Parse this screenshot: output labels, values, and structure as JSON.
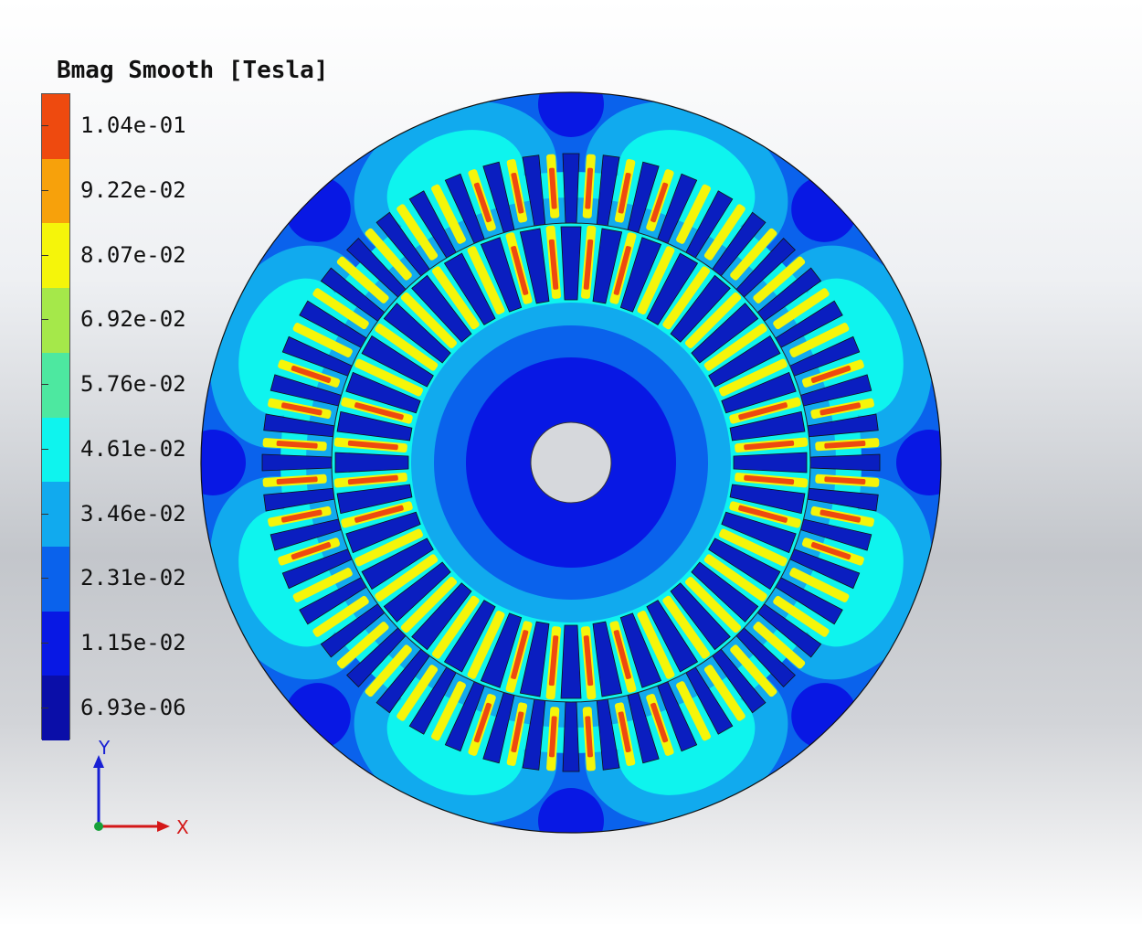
{
  "legend": {
    "title": "Bmag Smooth [Tesla]",
    "labels": [
      "1.04e-01",
      "9.22e-02",
      "8.07e-02",
      "6.92e-02",
      "5.76e-02",
      "4.61e-02",
      "3.46e-02",
      "2.31e-02",
      "1.15e-02",
      "6.93e-06"
    ],
    "band_colors": [
      "#ee4a0f",
      "#f7a10b",
      "#f5f50a",
      "#a5e84a",
      "#4de8a0",
      "#0ef4ee",
      "#11aaee",
      "#0a62ec",
      "#0818e4",
      "#0a0ea8"
    ]
  },
  "axes": {
    "x_label": "X",
    "y_label": "Y",
    "x_color": "#d41818",
    "y_color": "#1820d4",
    "origin_color": "#18a03a"
  },
  "motor": {
    "stator_slots": 48,
    "rotor_slots": 36,
    "colors": {
      "outline": "#111111",
      "shaft": "#d6d8dc",
      "outer_ring": "#0a62ec",
      "yoke_mid": "#11aaee",
      "yoke_hot": "#0ef4ee",
      "tooth_core": "#f5f50a",
      "tooth_peak": "#ee4a0f",
      "slot": "#0a1ec0",
      "rotor_outer": "#11aaee",
      "rotor_mid": "#0a62ec",
      "rotor_inner": "#0818e4"
    }
  }
}
